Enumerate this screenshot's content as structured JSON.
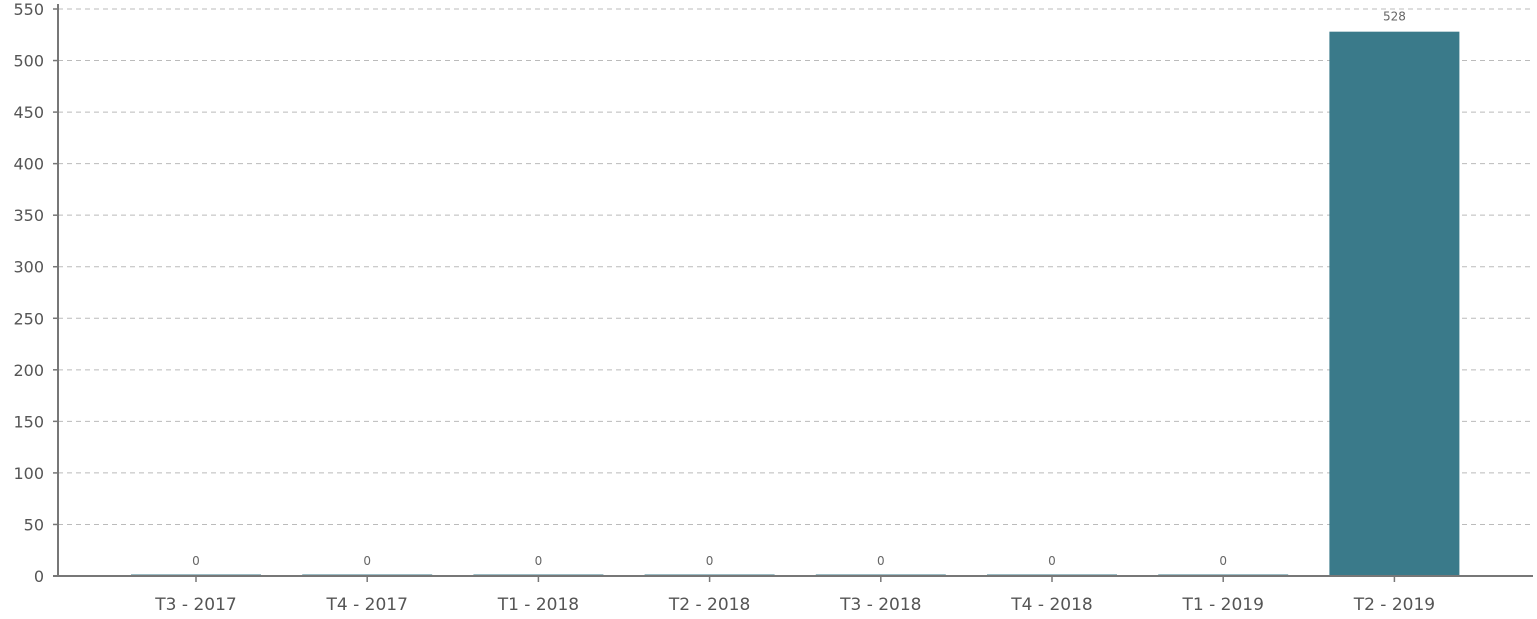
{
  "chart_data": {
    "type": "bar",
    "categories": [
      "T3 - 2017",
      "T4 - 2017",
      "T1 - 2018",
      "T2 - 2018",
      "T3 - 2018",
      "T4 - 2018",
      "T1 - 2019",
      "T2 - 2019"
    ],
    "values": [
      0,
      0,
      0,
      0,
      0,
      0,
      0,
      528
    ],
    "data_labels": [
      "0",
      "0",
      "0",
      "0",
      "0",
      "0",
      "0",
      "528"
    ],
    "title": "",
    "xlabel": "",
    "ylabel": "",
    "ylim": [
      0,
      550
    ],
    "yticks": [
      0,
      50,
      100,
      150,
      200,
      250,
      300,
      350,
      400,
      450,
      500,
      550
    ],
    "ytick_labels": [
      "0",
      "50",
      "100",
      "150",
      "200",
      "250",
      "300",
      "350",
      "400",
      "450",
      "500",
      "550"
    ],
    "grid": true,
    "bar_color": "#3a7a8a",
    "axis_color": "#777777",
    "grid_color": "#bbbbbb"
  }
}
